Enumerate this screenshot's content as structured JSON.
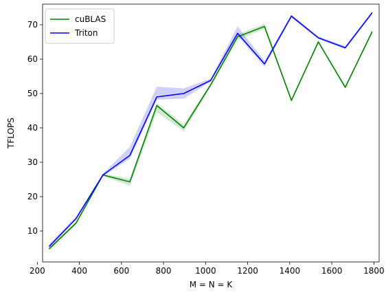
{
  "chart_data": {
    "type": "line",
    "title": "",
    "xlabel": "M = N = K",
    "ylabel": "TFLOPS",
    "xlim": [
      225,
      1825
    ],
    "ylim": [
      1,
      76
    ],
    "xticks": [
      200,
      400,
      600,
      800,
      1000,
      1200,
      1400,
      1600,
      1800
    ],
    "yticks": [
      10,
      20,
      30,
      40,
      50,
      60,
      70
    ],
    "grid": false,
    "legend": "top-left",
    "x": [
      256,
      384,
      512,
      640,
      768,
      896,
      1024,
      1152,
      1280,
      1408,
      1536,
      1664,
      1792
    ],
    "series": [
      {
        "name": "cuBLAS",
        "color": "#008000",
        "values": [
          4.8,
          12.3,
          26.3,
          24.3,
          46.5,
          40.0,
          52.5,
          66.5,
          69.5,
          48.0,
          65.0,
          51.8,
          68.0
        ],
        "band_low": [
          4.4,
          11.9,
          25.9,
          23.2,
          44.6,
          39.0,
          52.0,
          65.6,
          68.8,
          47.6,
          64.6,
          51.4,
          67.6
        ],
        "band_high": [
          5.2,
          12.7,
          26.7,
          25.2,
          47.2,
          41.0,
          53.0,
          67.2,
          70.3,
          48.4,
          65.4,
          52.2,
          68.4
        ]
      },
      {
        "name": "Triton",
        "color": "#0000ff",
        "values": [
          5.5,
          13.6,
          26.3,
          32.0,
          49.0,
          50.0,
          53.8,
          67.5,
          58.6,
          72.5,
          66.2,
          63.3,
          73.5
        ],
        "band_low": [
          5.0,
          13.2,
          25.9,
          31.0,
          48.2,
          48.5,
          53.4,
          66.8,
          57.8,
          72.0,
          65.8,
          62.9,
          73.1
        ],
        "band_high": [
          6.2,
          14.2,
          26.7,
          34.5,
          52.0,
          51.5,
          54.3,
          69.5,
          59.5,
          73.0,
          66.6,
          63.8,
          73.9
        ]
      }
    ]
  }
}
